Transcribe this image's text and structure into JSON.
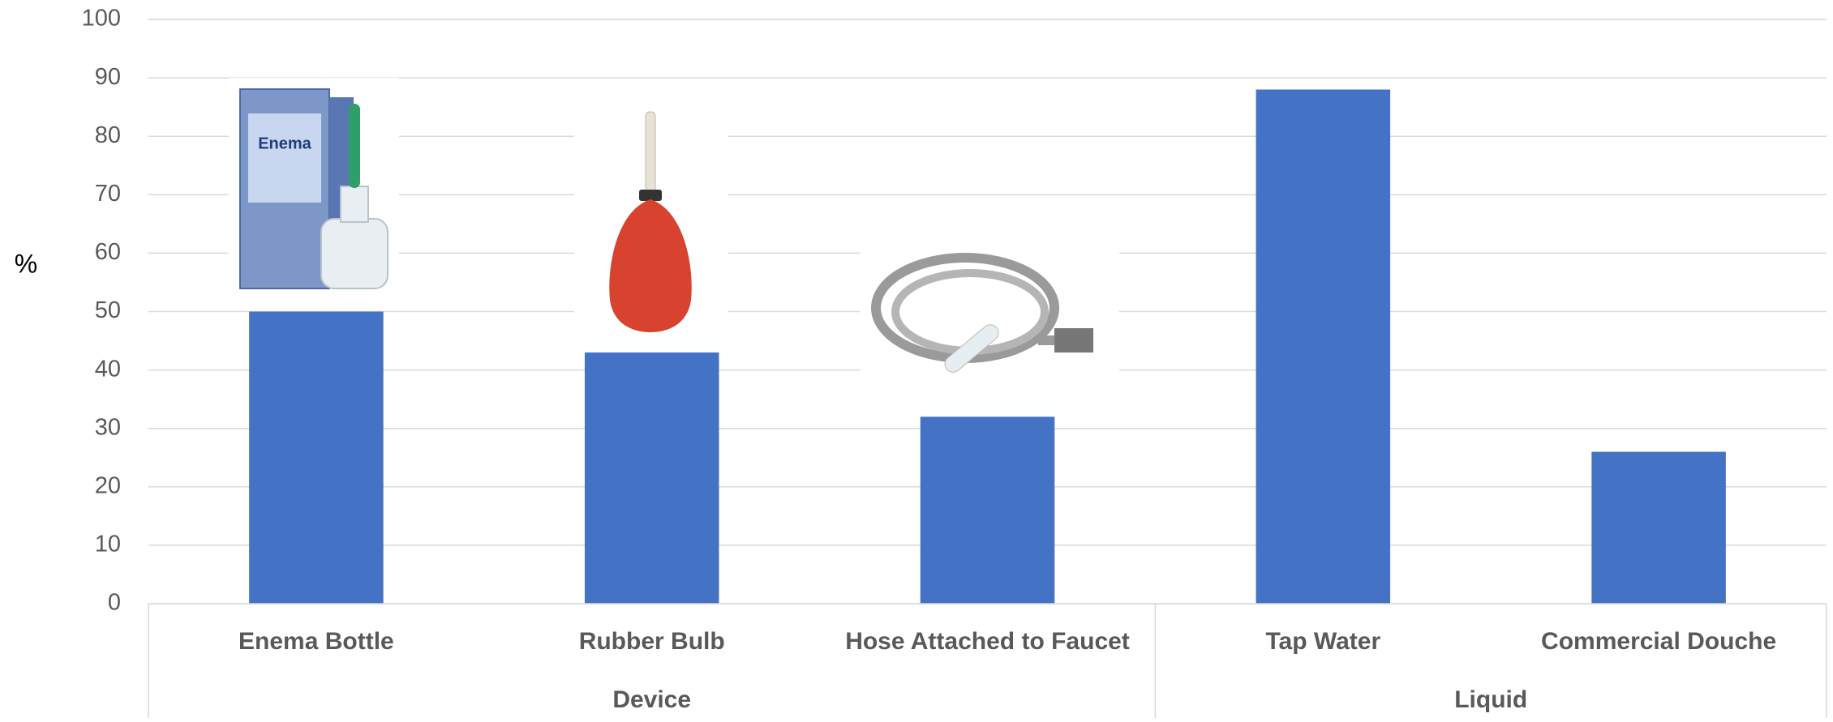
{
  "chart_data": {
    "type": "bar",
    "y_label": "%",
    "categories": [
      "Enema Bottle",
      "Rubber Bulb",
      "Hose Attached to Faucet",
      "Tap Water",
      "Commercial Douche"
    ],
    "group_labels": [
      "Device",
      "Liquid"
    ],
    "values": [
      50,
      43,
      32,
      88,
      26
    ],
    "color": "#4472c4",
    "ylim": [
      0,
      100
    ],
    "yticks": [
      0,
      10,
      20,
      30,
      40,
      50,
      60,
      70,
      80,
      90,
      100
    ],
    "grid": true
  }
}
